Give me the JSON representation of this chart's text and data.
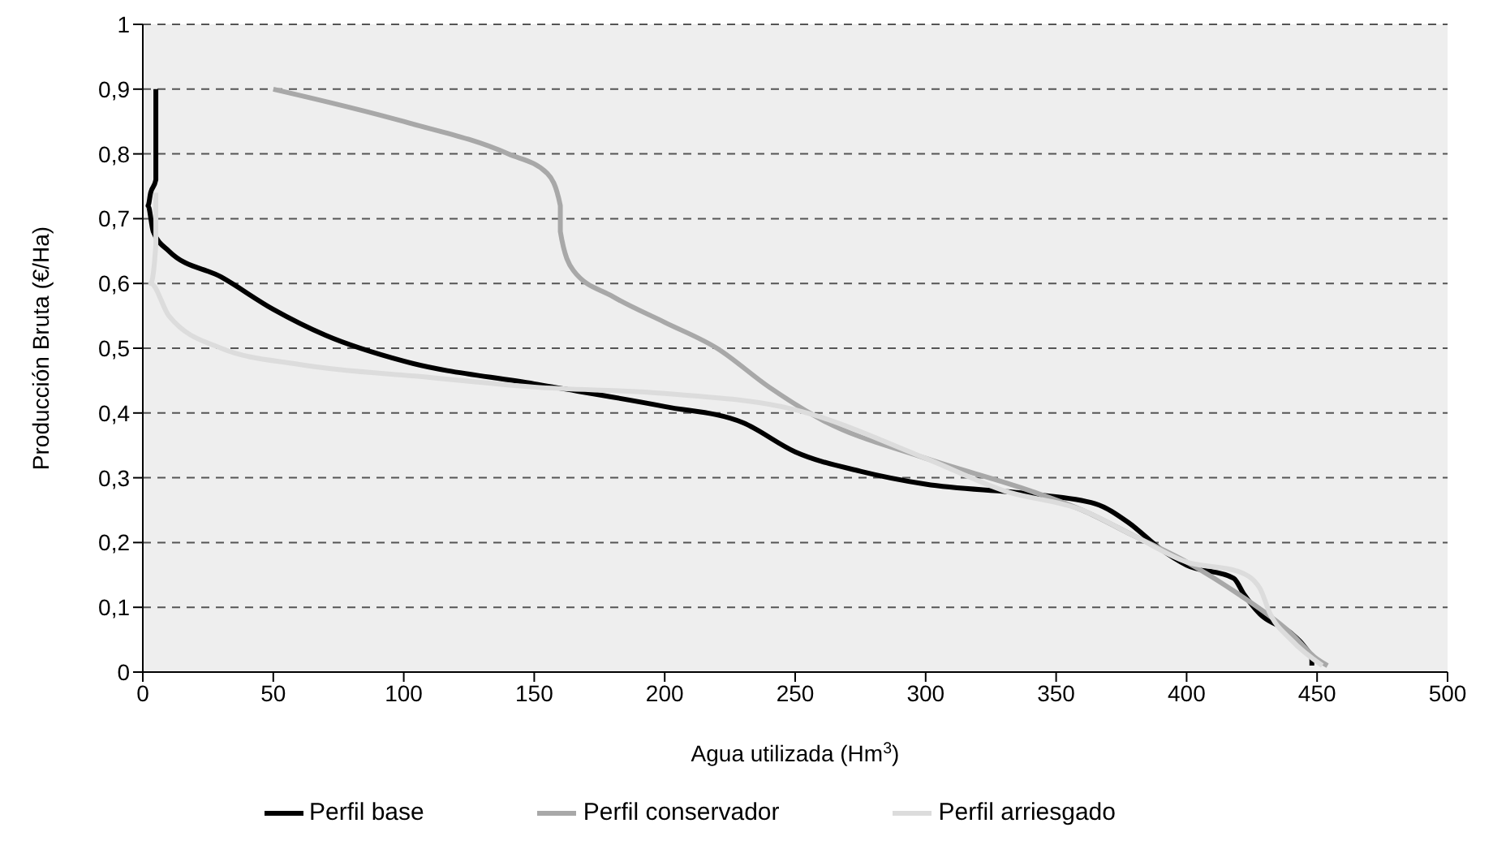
{
  "chart_data": {
    "type": "line",
    "xlabel": "Agua utilizada (Hm$^{3}$)",
    "ylabel": "Producción Bruta (€/Ha)",
    "xlim": [
      0,
      500
    ],
    "xticks": [
      0,
      50,
      100,
      150,
      200,
      250,
      300,
      350,
      400,
      450,
      500
    ],
    "ylim": [
      0,
      1
    ],
    "yticks": [
      0,
      {
        "value": 0.1,
        "label": "0,1"
      },
      {
        "value": 0.2,
        "label": "0,2"
      },
      {
        "value": 0.3,
        "label": "0,3"
      },
      {
        "value": 0.4,
        "label": "0,4"
      },
      {
        "value": 0.5,
        "label": "0,5"
      },
      {
        "value": 0.6,
        "label": "0,6"
      },
      {
        "value": 0.7,
        "label": "0,7"
      },
      {
        "value": 0.8,
        "label": "0,8"
      },
      {
        "value": 0.9,
        "label": "0,9"
      },
      1
    ],
    "grid": "y",
    "legend": "bottom",
    "marker": "none",
    "line_style": "solid",
    "series": [
      {
        "name": "Perfil base",
        "color": "#000000",
        "x": [
          5,
          5,
          3,
          2,
          4,
          10,
          30,
          50,
          70,
          100,
          150,
          200,
          230,
          250,
          275,
          300,
          340,
          365,
          378,
          390,
          400,
          418,
          422,
          428,
          440,
          445,
          448,
          448
        ],
        "values": [
          0.9,
          0.76,
          0.74,
          0.72,
          0.68,
          0.65,
          0.61,
          0.56,
          0.52,
          0.48,
          0.445,
          0.41,
          0.385,
          0.34,
          0.31,
          0.29,
          0.275,
          0.26,
          0.23,
          0.19,
          0.165,
          0.145,
          0.12,
          0.09,
          0.06,
          0.04,
          0.02,
          0.01
        ]
      },
      {
        "name": "Perfil conservador",
        "color": "#a8a8a8",
        "x": [
          50,
          100,
          140,
          155,
          160,
          160,
          165,
          180,
          200,
          220,
          240,
          260,
          300,
          340,
          360,
          380,
          400,
          420,
          440,
          450,
          454
        ],
        "values": [
          0.9,
          0.85,
          0.8,
          0.77,
          0.72,
          0.68,
          0.62,
          0.58,
          0.54,
          0.5,
          0.44,
          0.39,
          0.33,
          0.28,
          0.25,
          0.21,
          0.17,
          0.12,
          0.06,
          0.02,
          0.01
        ]
      },
      {
        "name": "Perfil arriesgado",
        "color": "#dcdcdc",
        "x": [
          5,
          5,
          3,
          10,
          30,
          60,
          110,
          150,
          200,
          250,
          300,
          330,
          360,
          380,
          400,
          420,
          428,
          432,
          440,
          452
        ],
        "values": [
          0.74,
          0.66,
          0.6,
          0.55,
          0.5,
          0.475,
          0.455,
          0.44,
          0.43,
          0.405,
          0.33,
          0.28,
          0.25,
          0.21,
          0.17,
          0.155,
          0.13,
          0.09,
          0.05,
          0.01
        ]
      }
    ]
  }
}
